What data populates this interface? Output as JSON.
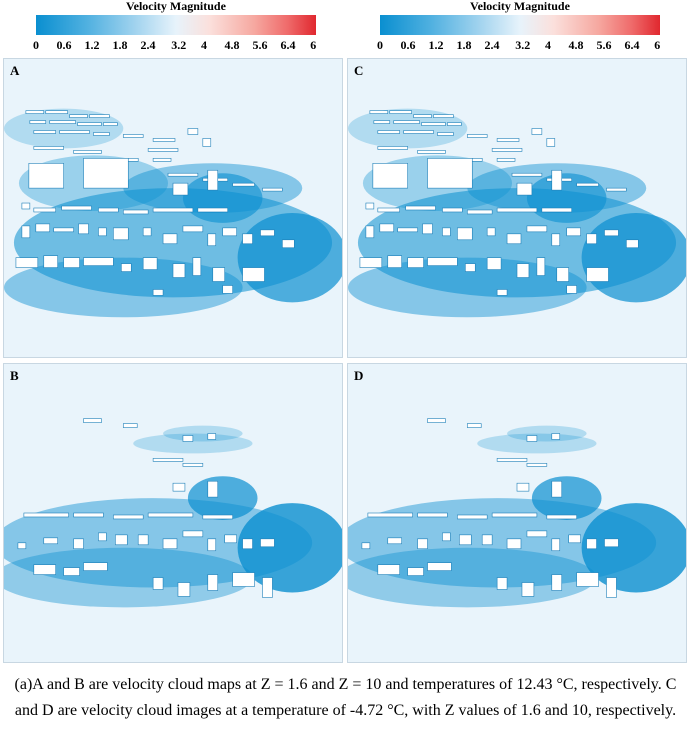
{
  "legend": {
    "title": "Velocity Magnitude",
    "ticks": [
      "0",
      "0.6",
      "1.2",
      "1.8",
      "2.4",
      "3.2",
      "4",
      "4.8",
      "5.6",
      "6.4",
      "6"
    ]
  },
  "panels": [
    {
      "id": "A",
      "label": "A"
    },
    {
      "id": "C",
      "label": "C"
    },
    {
      "id": "B",
      "label": "B"
    },
    {
      "id": "D",
      "label": "D"
    }
  ],
  "caption": "(a)A and B are velocity cloud maps at Z = 1.6 and Z = 10 and temperatures of 12.43 °C, respectively. C and D are velocity cloud images at a temperature of -4.72 °C, with Z values of 1.6 and 10, respectively.",
  "colors": {
    "low": "#0a8fd0",
    "mid": "#e7f3fb",
    "high": "#e0282f",
    "field_background": "#e9f4fb"
  }
}
